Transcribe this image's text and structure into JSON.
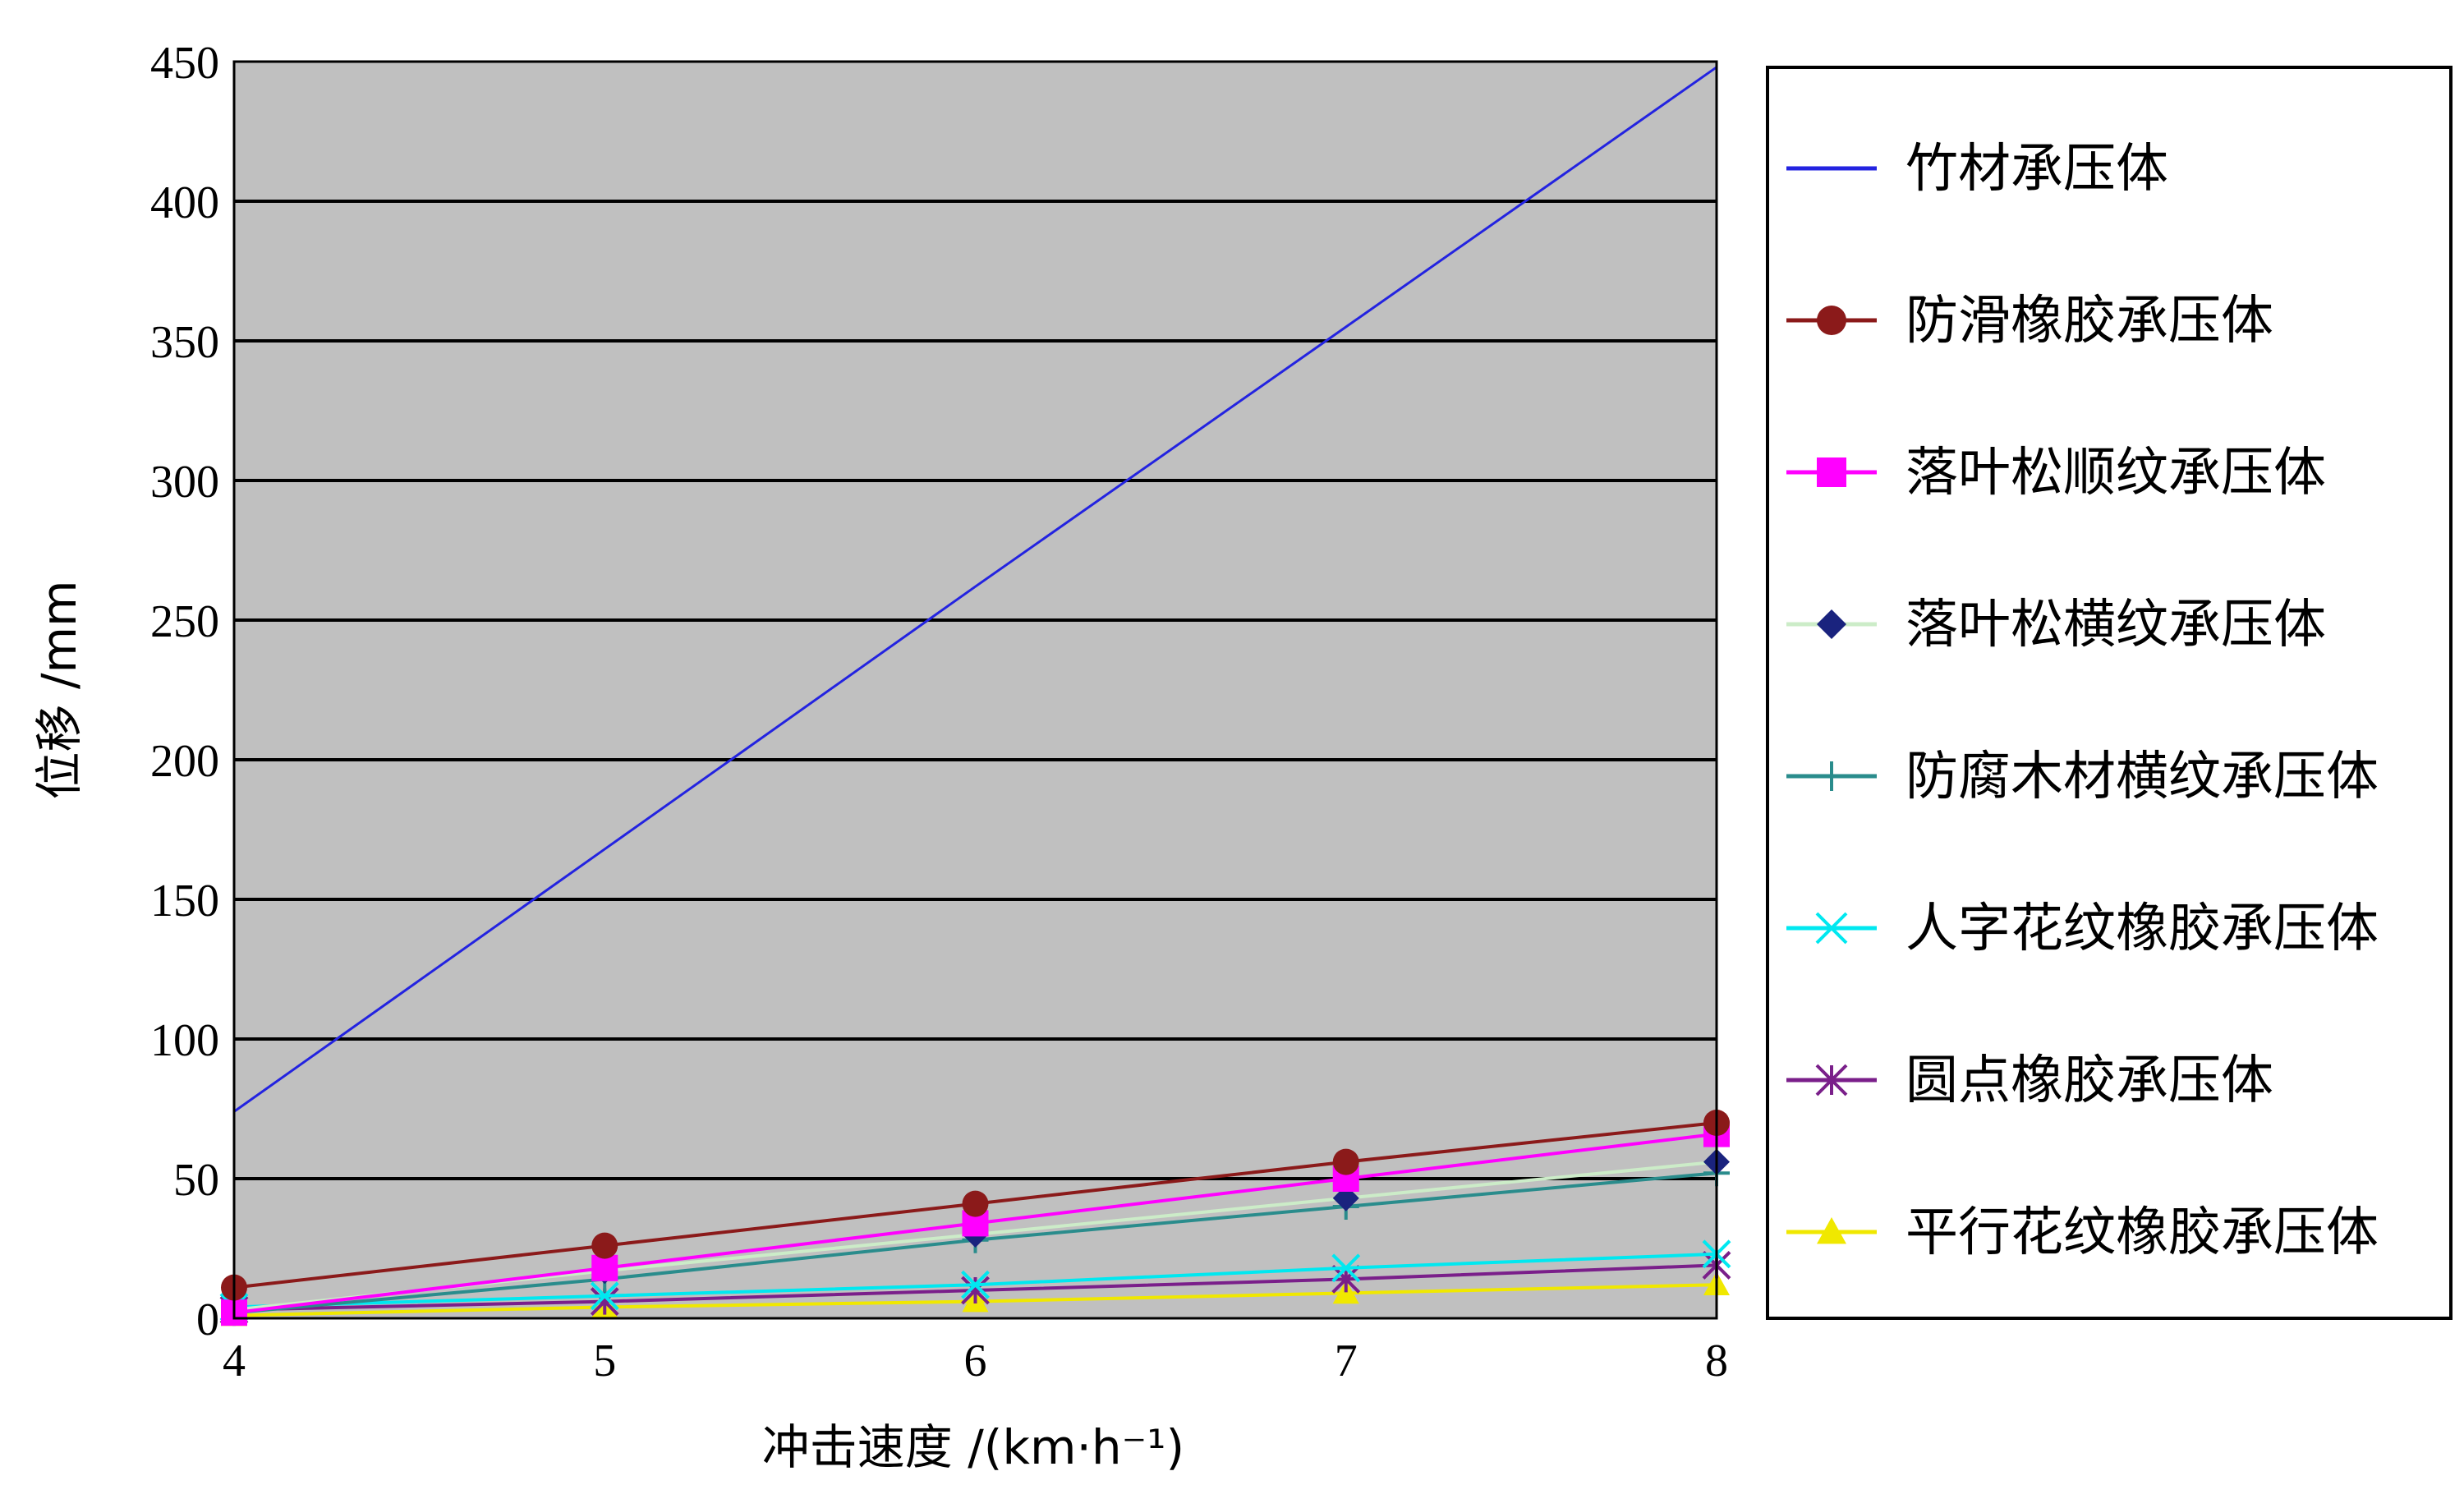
{
  "chart_data": {
    "type": "line",
    "ylabel": "位移 /mm",
    "xlabel": "冲击速度 /(km·h⁻¹)",
    "x": [
      4,
      5,
      6,
      7,
      8
    ],
    "xlim": [
      4,
      8
    ],
    "ylim": [
      0,
      450
    ],
    "x_ticks": [
      "4",
      "5",
      "6",
      "7",
      "8"
    ],
    "y_ticks": [
      "0",
      "50",
      "100",
      "150",
      "200",
      "250",
      "300",
      "350",
      "400",
      "450"
    ],
    "grid": "horizontal",
    "legend_position": "right",
    "series": [
      {
        "name": "竹材承压体",
        "color": "#2323e0",
        "marker": "none",
        "values": [
          74,
          168,
          262,
          355,
          448
        ]
      },
      {
        "name": "防滑橡胶承压体",
        "color": "#8b1a1a",
        "marker": "circle",
        "values": [
          11,
          26,
          41,
          56,
          70
        ]
      },
      {
        "name": "落叶松顺纹承压体",
        "color": "#ff00ff",
        "marker": "square",
        "values": [
          2,
          18,
          34,
          50,
          66
        ]
      },
      {
        "name": "落叶松横纹承压体",
        "color": "#ccecc8",
        "marker": "diamond",
        "values": [
          3,
          17,
          30,
          43,
          56
        ]
      },
      {
        "name": "防腐木材横纹承压体",
        "color": "#2a8c8c",
        "marker": "plus",
        "values": [
          2,
          14,
          28,
          40,
          52
        ]
      },
      {
        "name": "人字花纹橡胶承压体",
        "color": "#00e8f0",
        "marker": "x",
        "values": [
          4,
          8,
          12,
          18,
          23
        ]
      },
      {
        "name": "圆点橡胶承压体",
        "color": "#7a1f8a",
        "marker": "star",
        "values": [
          3,
          6,
          10,
          14,
          19
        ]
      },
      {
        "name": "平行花纹橡胶承压体",
        "color": "#f0e800",
        "marker": "triangle",
        "values": [
          1,
          4,
          6,
          9,
          12
        ]
      }
    ]
  }
}
